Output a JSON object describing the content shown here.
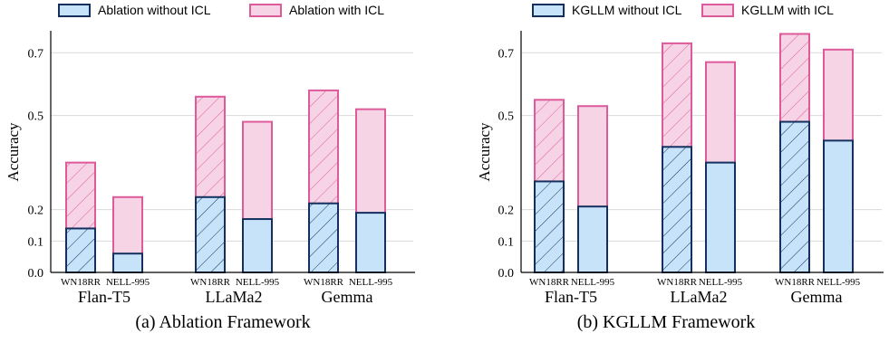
{
  "colors": {
    "without_fill": "#c6e3fa",
    "without_stroke": "#15305e",
    "with_fill": "#f7d3e6",
    "with_stroke": "#de5b9b",
    "hatch_without": "#15305e",
    "hatch_with": "#de5b9b",
    "grid": "#d9d9d9",
    "axis": "#000000"
  },
  "chart_data": [
    {
      "type": "bar",
      "subtype": "stacked-grouped",
      "caption": "(a) Ablation Framework",
      "ylabel": "Accuracy",
      "ylim": [
        0,
        0.77
      ],
      "yticks": [
        "0.0",
        "0.1",
        "0.2",
        "0.5",
        "0.7"
      ],
      "grid": true,
      "legend": {
        "placement": "top",
        "entries": [
          "Ablation without ICL",
          "Ablation with ICL"
        ]
      },
      "groups": [
        "Flan-T5",
        "LLaMa2",
        "Gemma"
      ],
      "datasets": [
        "WN18RR",
        "NELL-995"
      ],
      "series": [
        {
          "name": "Ablation without ICL",
          "values": [
            [
              0.14,
              0.06
            ],
            [
              0.24,
              0.17
            ],
            [
              0.22,
              0.19
            ]
          ]
        },
        {
          "name": "Ablation with ICL",
          "values": [
            [
              0.35,
              0.24
            ],
            [
              0.56,
              0.48
            ],
            [
              0.58,
              0.52
            ]
          ]
        }
      ]
    },
    {
      "type": "bar",
      "subtype": "stacked-grouped",
      "caption": "(b) KGLLM Framework",
      "ylabel": "Accuracy",
      "ylim": [
        0,
        0.77
      ],
      "yticks": [
        "0.0",
        "0.1",
        "0.2",
        "0.5",
        "0.7"
      ],
      "grid": true,
      "legend": {
        "placement": "top",
        "entries": [
          "KGLLM without ICL",
          "KGLLM with ICL"
        ]
      },
      "groups": [
        "Flan-T5",
        "LLaMa2",
        "Gemma"
      ],
      "datasets": [
        "WN18RR",
        "NELL-995"
      ],
      "series": [
        {
          "name": "KGLLM without ICL",
          "values": [
            [
              0.29,
              0.21
            ],
            [
              0.4,
              0.35
            ],
            [
              0.48,
              0.42
            ]
          ]
        },
        {
          "name": "KGLLM with ICL",
          "values": [
            [
              0.55,
              0.53
            ],
            [
              0.73,
              0.67
            ],
            [
              0.76,
              0.71
            ]
          ]
        }
      ]
    }
  ]
}
